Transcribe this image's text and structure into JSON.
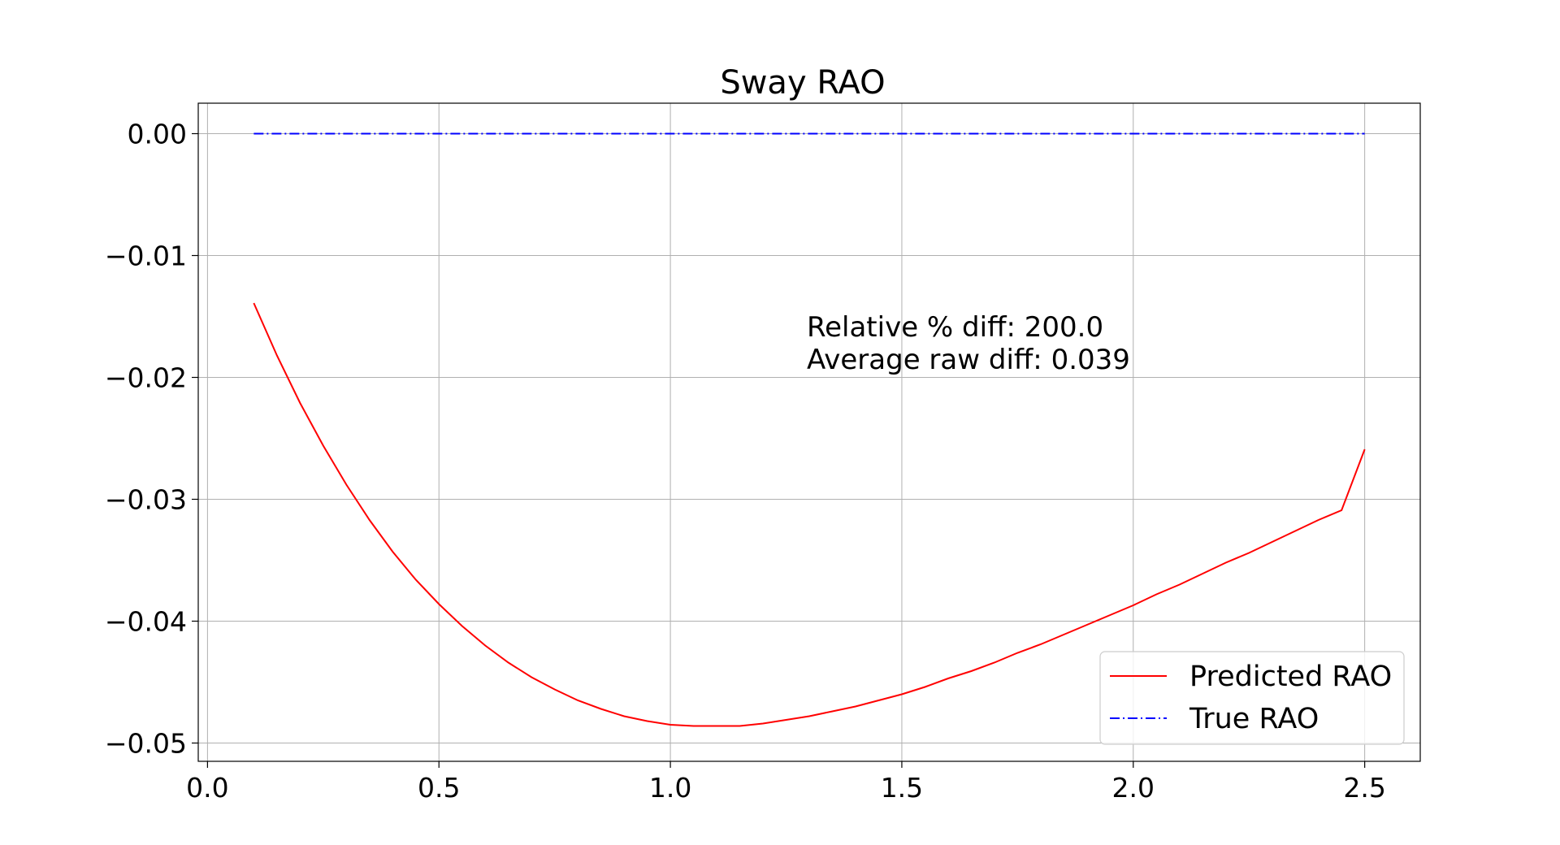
{
  "chart_data": {
    "type": "line",
    "title": "Sway RAO",
    "xlabel": "",
    "ylabel": "",
    "xlim": [
      -0.02,
      2.62
    ],
    "ylim": [
      -0.0515,
      0.0025
    ],
    "xticks": [
      0.0,
      0.5,
      1.0,
      1.5,
      2.0,
      2.5
    ],
    "xtick_labels": [
      "0.0",
      "0.5",
      "1.0",
      "1.5",
      "2.0",
      "2.5"
    ],
    "yticks": [
      0.0,
      -0.01,
      -0.02,
      -0.03,
      -0.04,
      -0.05
    ],
    "ytick_labels": [
      "0.00",
      "−0.01",
      "−0.02",
      "−0.03",
      "−0.04",
      "−0.05"
    ],
    "grid": true,
    "legend_position": "lower-right",
    "annotations": [
      "Relative % diff: 200.0",
      "Average raw diff: 0.039"
    ],
    "series": [
      {
        "name": "Predicted RAO",
        "color": "#ff0000",
        "style": "solid",
        "x": [
          0.1,
          0.15,
          0.2,
          0.25,
          0.3,
          0.35,
          0.4,
          0.45,
          0.5,
          0.55,
          0.6,
          0.65,
          0.7,
          0.75,
          0.8,
          0.85,
          0.9,
          0.95,
          1.0,
          1.05,
          1.1,
          1.15,
          1.2,
          1.25,
          1.3,
          1.35,
          1.4,
          1.45,
          1.5,
          1.55,
          1.6,
          1.65,
          1.7,
          1.75,
          1.8,
          1.85,
          1.9,
          1.95,
          2.0,
          2.05,
          2.1,
          2.15,
          2.2,
          2.25,
          2.3,
          2.35,
          2.4,
          2.45,
          2.5
        ],
        "y": [
          -0.0139,
          -0.0182,
          -0.0221,
          -0.0256,
          -0.0288,
          -0.0317,
          -0.0343,
          -0.0366,
          -0.0386,
          -0.0404,
          -0.042,
          -0.0434,
          -0.0446,
          -0.0456,
          -0.0465,
          -0.0472,
          -0.0478,
          -0.0482,
          -0.0485,
          -0.0486,
          -0.0486,
          -0.0486,
          -0.0484,
          -0.0481,
          -0.0478,
          -0.0474,
          -0.047,
          -0.0465,
          -0.046,
          -0.0454,
          -0.0447,
          -0.0441,
          -0.0434,
          -0.0426,
          -0.0419,
          -0.0411,
          -0.0403,
          -0.0395,
          -0.0387,
          -0.0378,
          -0.037,
          -0.0361,
          -0.0352,
          -0.0344,
          -0.0335,
          -0.0326,
          -0.0317,
          -0.0309,
          -0.0259
        ]
      },
      {
        "name": "True RAO",
        "color": "#0000ff",
        "style": "dashdot",
        "x": [
          0.1,
          2.5
        ],
        "y": [
          0.0,
          0.0
        ]
      }
    ]
  }
}
